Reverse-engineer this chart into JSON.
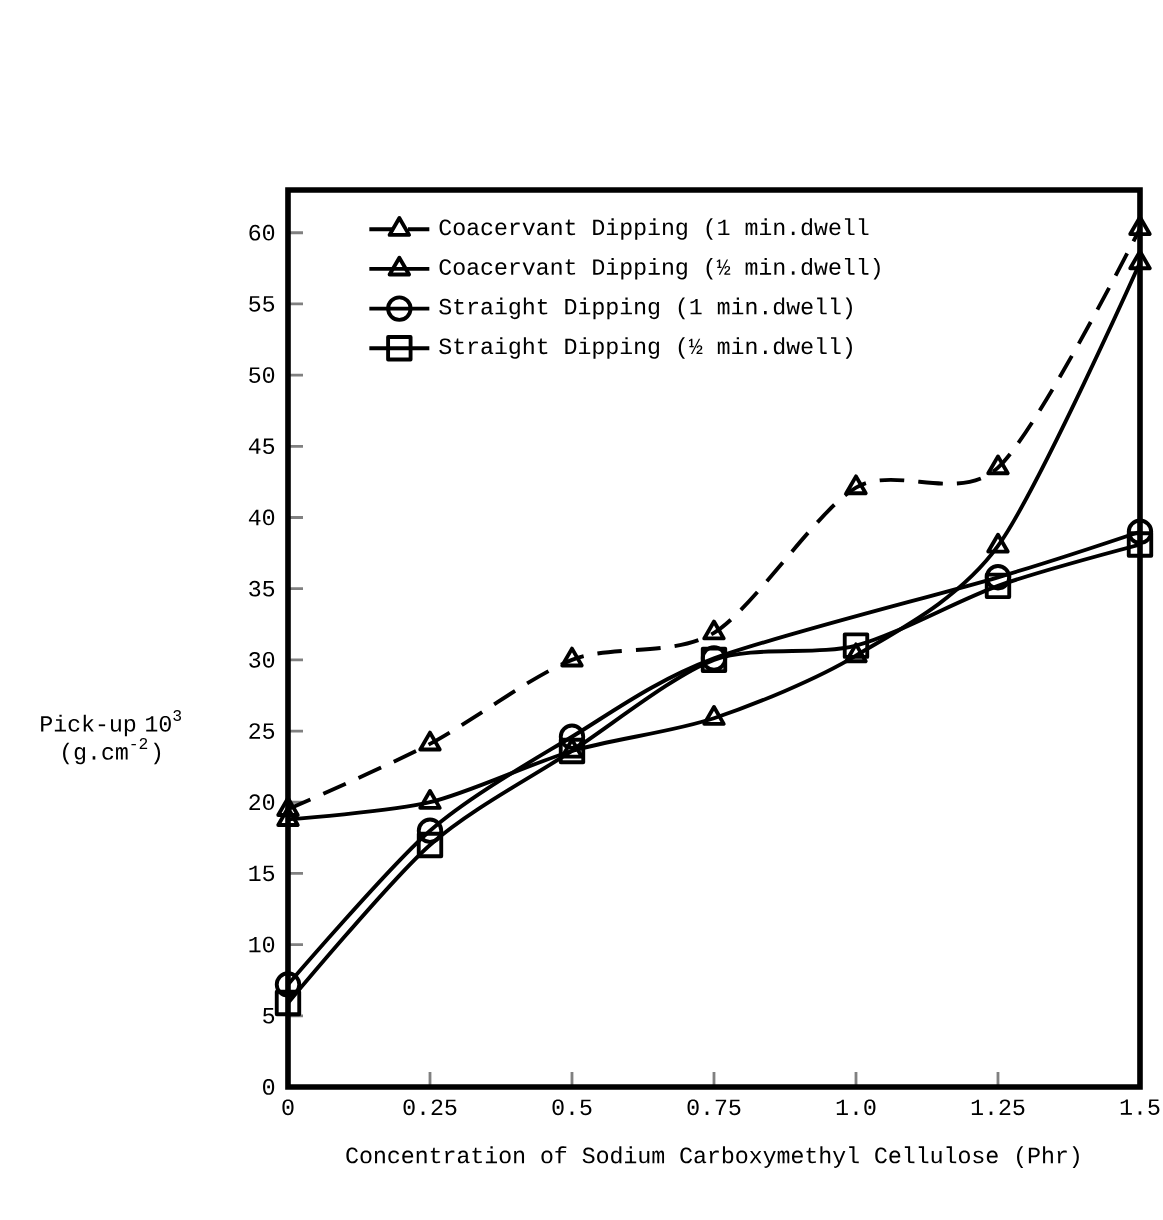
{
  "chart_data": {
    "type": "line",
    "xlabel": "Concentration of Sodium Carboxymethyl Cellulose (Phr)",
    "ylabel": "Pick-up 10$^{3}$ (g.cm$^{-2}$)",
    "x": [
      0,
      0.25,
      0.5,
      0.75,
      1.0,
      1.25,
      1.5
    ],
    "series": [
      {
        "name": "Coacervant Dipping (1 min.dwell",
        "color": "#000000",
        "marker": "triangle",
        "line_style": "dashed",
        "values": [
          19.5,
          24.1,
          30,
          31.9,
          42.1,
          43.5,
          60.3
        ]
      },
      {
        "name": "Coacervant Dipping (½ min.dwell)",
        "color": "#000000",
        "marker": "triangle",
        "line_style": "solid",
        "values": [
          18.8,
          20,
          23.6,
          25.9,
          30.3,
          38,
          57.9
        ]
      },
      {
        "name": "Straight Dipping (1 min.dwell)",
        "color": "#000000",
        "marker": "circle",
        "line_style": "solid",
        "values": [
          7.2,
          18,
          24.6,
          30.1,
          null,
          35.8,
          39
        ]
      },
      {
        "name": "Straight Dipping (½ min.dwell)",
        "color": "#000000",
        "marker": "square",
        "line_style": "solid",
        "values": [
          5.9,
          17,
          23.6,
          30,
          31,
          35.2,
          38.1
        ]
      }
    ],
    "xlim": [
      0,
      1.5
    ],
    "ylim": [
      0,
      63
    ],
    "xticks": [
      0,
      0.25,
      0.5,
      0.75,
      {
        "value": 1,
        "label": "1.0"
      },
      1.25,
      1.5
    ],
    "yticks": [
      0,
      5,
      10,
      15,
      20,
      25,
      30,
      35,
      40,
      45,
      50,
      55,
      60
    ],
    "grid": false,
    "legend": "top left"
  }
}
